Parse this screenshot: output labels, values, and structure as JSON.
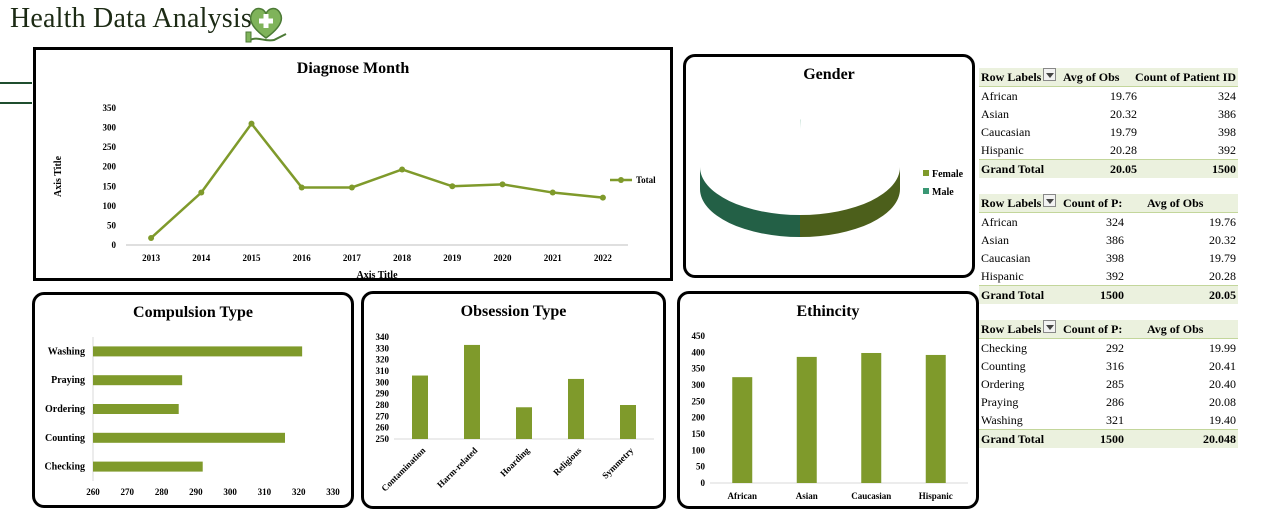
{
  "header": {
    "title": "Health Data Analysis",
    "logo_icon": "heart-plus-hand-icon"
  },
  "colors": {
    "accent": "#7f9a2b",
    "pie_female": "#7f9a2b",
    "pie_male": "#3a9774"
  },
  "charts": {
    "diagnose": {
      "title": "Diagnose Month",
      "xlabel": "Axis Title",
      "ylabel": "Axis Title",
      "legend": "Total"
    },
    "gender": {
      "title": "Gender",
      "legend": [
        "Female",
        "Male"
      ]
    },
    "compulsion": {
      "title": "Compulsion Type"
    },
    "obsession": {
      "title": "Obsession Type"
    },
    "ethnicity": {
      "title": "Ethincity"
    }
  },
  "chart_data": [
    {
      "type": "line",
      "title": "Diagnose Month",
      "xlabel": "Axis Title",
      "ylabel": "Axis Title",
      "x": [
        "2013",
        "2014",
        "2015",
        "2016",
        "2017",
        "2018",
        "2019",
        "2020",
        "2021",
        "2022"
      ],
      "series": [
        {
          "name": "Total",
          "values": [
            18,
            134,
            310,
            147,
            147,
            193,
            150,
            155,
            134,
            121
          ]
        }
      ],
      "ylim": [
        0,
        350
      ],
      "yticks": [
        0,
        50,
        100,
        150,
        200,
        250,
        300,
        350
      ],
      "legend_position": "right"
    },
    {
      "type": "pie",
      "title": "Gender",
      "categories": [
        "Female",
        "Male"
      ],
      "values": [
        753,
        747
      ],
      "legend_position": "right"
    },
    {
      "type": "bar",
      "orientation": "horizontal",
      "title": "Compulsion Type",
      "categories": [
        "Washing",
        "Praying",
        "Ordering",
        "Counting",
        "Checking"
      ],
      "values": [
        321,
        286,
        285,
        316,
        292
      ],
      "xlim": [
        260,
        330
      ],
      "xticks": [
        260,
        270,
        280,
        290,
        300,
        310,
        320,
        330
      ]
    },
    {
      "type": "bar",
      "title": "Obsession Type",
      "categories": [
        "Contamination",
        "Harm-related",
        "Hoarding",
        "Religious",
        "Symmetry"
      ],
      "values": [
        306,
        333,
        278,
        303,
        280
      ],
      "ylim": [
        250,
        340
      ],
      "yticks": [
        250,
        260,
        270,
        280,
        290,
        300,
        310,
        320,
        330,
        340
      ]
    },
    {
      "type": "bar",
      "title": "Ethincity",
      "categories": [
        "African",
        "Asian",
        "Caucasian",
        "Hispanic"
      ],
      "values": [
        324,
        386,
        398,
        392
      ],
      "ylim": [
        0,
        450
      ],
      "yticks": [
        0,
        50,
        100,
        150,
        200,
        250,
        300,
        350,
        400,
        450
      ]
    }
  ],
  "pivots": [
    {
      "headers": [
        "Row Labels",
        "Avg of Obs",
        "Count of Patient ID"
      ],
      "rows": [
        [
          "African",
          "19.76",
          "324"
        ],
        [
          "Asian",
          "20.32",
          "386"
        ],
        [
          "Caucasian",
          "19.79",
          "398"
        ],
        [
          "Hispanic",
          "20.28",
          "392"
        ]
      ],
      "total": [
        "Grand Total",
        "20.05",
        "1500"
      ]
    },
    {
      "headers": [
        "Row Labels",
        "Count of P:",
        "Avg of Obs"
      ],
      "rows": [
        [
          "African",
          "324",
          "19.76"
        ],
        [
          "Asian",
          "386",
          "20.32"
        ],
        [
          "Caucasian",
          "398",
          "19.79"
        ],
        [
          "Hispanic",
          "392",
          "20.28"
        ]
      ],
      "total": [
        "Grand Total",
        "1500",
        "20.05"
      ]
    },
    {
      "headers": [
        "Row Labels",
        "Count of P:",
        "Avg of Obs"
      ],
      "rows": [
        [
          "Checking",
          "292",
          "19.99"
        ],
        [
          "Counting",
          "316",
          "20.41"
        ],
        [
          "Ordering",
          "285",
          "20.40"
        ],
        [
          "Praying",
          "286",
          "20.08"
        ],
        [
          "Washing",
          "321",
          "19.40"
        ]
      ],
      "total": [
        "Grand Total",
        "1500",
        "20.048"
      ]
    }
  ]
}
